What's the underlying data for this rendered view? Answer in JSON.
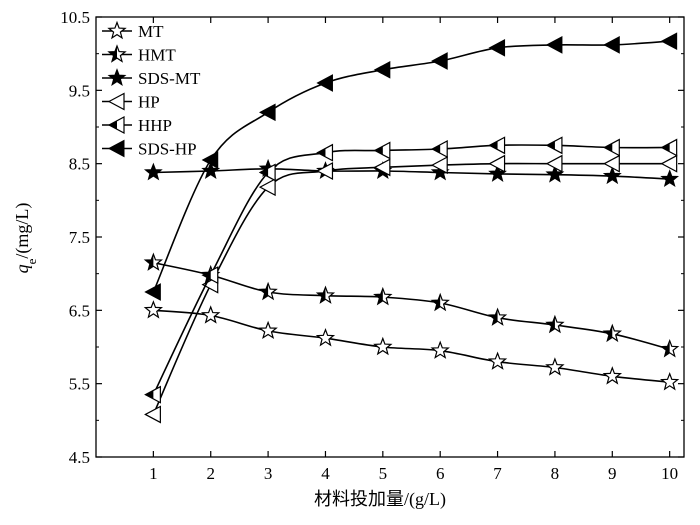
{
  "chart_data": {
    "type": "line",
    "title": "",
    "xlabel": "材料投加量/(g/L)",
    "ylabel_var": "q",
    "ylabel_sub": "e",
    "ylabel_unit": "/(mg/L)",
    "x": [
      1,
      2,
      3,
      4,
      5,
      6,
      7,
      8,
      9,
      10
    ],
    "xlim": [
      0,
      10.25
    ],
    "ylim": [
      4.5,
      10.5
    ],
    "xticks": [
      "1",
      "2",
      "3",
      "4",
      "5",
      "6",
      "7",
      "8",
      "9",
      "10"
    ],
    "yticks": [
      "4.5",
      "5.5",
      "6.5",
      "7.5",
      "8.5",
      "9.5",
      "10.5"
    ],
    "ytick_values": [
      4.5,
      5.5,
      6.5,
      7.5,
      8.5,
      9.5,
      10.5
    ],
    "grid": false,
    "legend_position": "top-left",
    "series": [
      {
        "name": "MT",
        "marker": "star-open",
        "values": [
          6.5,
          6.43,
          6.22,
          6.12,
          6.0,
          5.95,
          5.8,
          5.72,
          5.6,
          5.52
        ]
      },
      {
        "name": "HMT",
        "marker": "star-half",
        "values": [
          7.15,
          6.98,
          6.75,
          6.7,
          6.68,
          6.6,
          6.4,
          6.3,
          6.18,
          5.97
        ]
      },
      {
        "name": "SDS-MT",
        "marker": "star-filled",
        "values": [
          8.38,
          8.4,
          8.43,
          8.4,
          8.4,
          8.38,
          8.36,
          8.35,
          8.33,
          8.29
        ]
      },
      {
        "name": "HP",
        "marker": "triangle-open",
        "values": [
          5.08,
          6.85,
          8.18,
          8.4,
          8.45,
          8.48,
          8.5,
          8.5,
          8.5,
          8.5
        ]
      },
      {
        "name": "HHP",
        "marker": "triangle-half",
        "values": [
          5.35,
          6.98,
          8.38,
          8.65,
          8.68,
          8.7,
          8.75,
          8.75,
          8.72,
          8.72
        ]
      },
      {
        "name": "SDS-HP",
        "marker": "triangle-filled",
        "values": [
          6.75,
          8.55,
          9.2,
          9.6,
          9.78,
          9.9,
          10.08,
          10.12,
          10.12,
          10.17
        ]
      }
    ]
  }
}
